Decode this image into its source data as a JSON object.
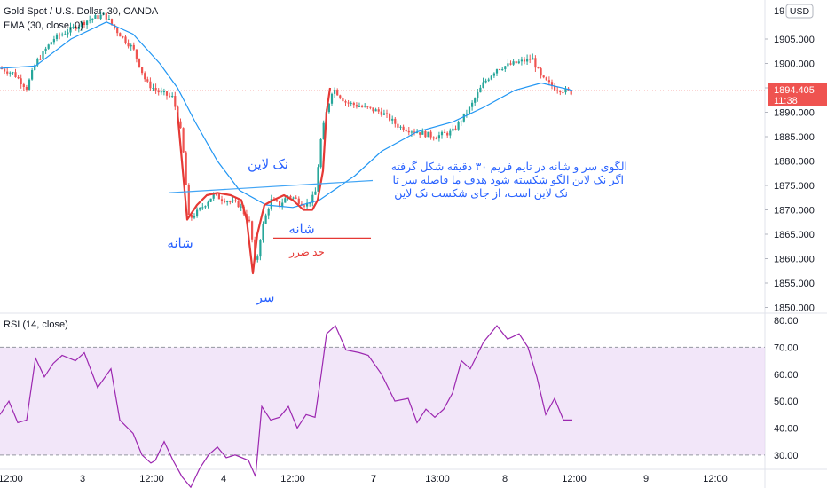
{
  "header": {
    "symbol_title": "Gold Spot / U.S. Dollar, 30, OANDA",
    "ema_label": "EMA (30, close, 0)",
    "currency_button": "USD",
    "last_price": "1894.405",
    "countdown": "11:38"
  },
  "rsi_panel": {
    "label": "RSI (14, close)"
  },
  "annotations": {
    "neckline_label": "نک لاین",
    "left_shoulder": "شانه",
    "right_shoulder": "شانه",
    "head": "سر",
    "stop_loss": "حد ضرر",
    "note_line1": "الگوی سر و شانه در تایم فریم ۳۰ دقیقه شکل گرفته",
    "note_line2": "اگر نک لاین الگو شکسته شود هدف ما فاصله سر تا",
    "note_line3": "نک لاین است، از جای شکست نک لاین"
  },
  "colors": {
    "candle_up": "#26a69a",
    "candle_down": "#ef5350",
    "ema": "#2196f3",
    "rsi_line": "#9c27b0",
    "rsi_band": "#e9d5f5",
    "price_line": "#ef5350",
    "pattern_line": "#e53935",
    "neckline": "#42a5f5"
  },
  "chart_data": [
    {
      "type": "candlestick",
      "title": "Gold Spot / U.S. Dollar, 30, OANDA",
      "y_unit": "USD",
      "ylim": [
        1849,
        1913
      ],
      "y_ticks": [
        1850.0,
        1855.0,
        1860.0,
        1865.0,
        1870.0,
        1875.0,
        1880.0,
        1885.0,
        1890.0,
        1895.0,
        1900.0,
        1905.0
      ],
      "y_tick_labels": [
        "1850.000",
        "1855.000",
        "1860.000",
        "1865.000",
        "1870.000",
        "1875.000",
        "1880.000",
        "1885.000",
        "1890.000",
        "1895.000",
        "1900.000",
        "1905.000"
      ],
      "x_tick_labels": [
        "12:00",
        "3",
        "12:00",
        "4",
        "12:00",
        "7",
        "13:00",
        "8",
        "12:00",
        "9",
        "12:00"
      ],
      "last_price": 1894.405,
      "series": [
        {
          "name": "EMA (30, close, 0)",
          "kind": "ema",
          "points": [
            [
              0,
              1899.0
            ],
            [
              40,
              1899.5
            ],
            [
              80,
              1905.0
            ],
            [
              120,
              1908.5
            ],
            [
              150,
              1906.0
            ],
            [
              180,
              1900.0
            ],
            [
              200,
              1895.0
            ],
            [
              220,
              1888.0
            ],
            [
              245,
              1880.0
            ],
            [
              270,
              1874.0
            ],
            [
              300,
              1871.0
            ],
            [
              330,
              1870.5
            ],
            [
              360,
              1872.0
            ],
            [
              400,
              1877.0
            ],
            [
              430,
              1882.0
            ],
            [
              470,
              1886.0
            ],
            [
              510,
              1888.0
            ],
            [
              545,
              1891.0
            ],
            [
              580,
              1894.5
            ],
            [
              610,
              1896.0
            ],
            [
              645,
              1894.5
            ]
          ]
        },
        {
          "name": "Price",
          "kind": "price_path",
          "points": [
            [
              0,
              1899
            ],
            [
              15,
              1898
            ],
            [
              30,
              1895
            ],
            [
              40,
              1900
            ],
            [
              60,
              1905
            ],
            [
              80,
              1907
            ],
            [
              100,
              1909
            ],
            [
              118,
              1910
            ],
            [
              130,
              1907
            ],
            [
              150,
              1903
            ],
            [
              165,
              1896
            ],
            [
              180,
              1894
            ],
            [
              195,
              1893
            ],
            [
              205,
              1885
            ],
            [
              213,
              1868
            ],
            [
              225,
              1870
            ],
            [
              240,
              1873
            ],
            [
              255,
              1872
            ],
            [
              270,
              1871
            ],
            [
              282,
              1867
            ],
            [
              288,
              1858
            ],
            [
              295,
              1866
            ],
            [
              305,
              1872
            ],
            [
              315,
              1871
            ],
            [
              325,
              1873
            ],
            [
              335,
              1872
            ],
            [
              345,
              1871
            ],
            [
              355,
              1873
            ],
            [
              362,
              1885
            ],
            [
              368,
              1890
            ],
            [
              375,
              1895
            ],
            [
              390,
              1892
            ],
            [
              410,
              1891
            ],
            [
              430,
              1890
            ],
            [
              450,
              1887
            ],
            [
              470,
              1886
            ],
            [
              490,
              1885
            ],
            [
              510,
              1886
            ],
            [
              530,
              1891
            ],
            [
              545,
              1896
            ],
            [
              560,
              1899
            ],
            [
              580,
              1900
            ],
            [
              600,
              1901
            ],
            [
              610,
              1897
            ],
            [
              625,
              1895
            ],
            [
              645,
              1894
            ]
          ]
        }
      ],
      "pattern": {
        "name": "head and shoulders",
        "path": [
          [
            200,
            1890
          ],
          [
            206,
            1878
          ],
          [
            211,
            1868
          ],
          [
            222,
            1871
          ],
          [
            233,
            1873
          ],
          [
            245,
            1873.5
          ],
          [
            260,
            1873
          ],
          [
            272,
            1872
          ],
          [
            278,
            1868
          ],
          [
            285,
            1857
          ],
          [
            290,
            1865
          ],
          [
            298,
            1871
          ],
          [
            308,
            1872
          ],
          [
            320,
            1873
          ],
          [
            330,
            1872
          ],
          [
            342,
            1870
          ],
          [
            352,
            1870
          ],
          [
            358,
            1872
          ],
          [
            364,
            1878
          ],
          [
            368,
            1890
          ],
          [
            372,
            1895
          ]
        ],
        "neckline": [
          [
            190,
            1873.5
          ],
          [
            420,
            1876
          ]
        ],
        "stop_loss": {
          "x0": 308,
          "x1": 418,
          "y": 1864.2
        }
      }
    },
    {
      "type": "line",
      "title": "RSI (14, close)",
      "ylim": [
        25,
        82
      ],
      "y_ticks": [
        30,
        40,
        50,
        60,
        70,
        80
      ],
      "y_tick_labels": [
        "30.00",
        "40.00",
        "50.00",
        "60.00",
        "70.00",
        "80.00"
      ],
      "band": [
        30,
        70
      ],
      "series": [
        {
          "name": "RSI (14, close)",
          "points": [
            [
              0,
              45
            ],
            [
              10,
              50
            ],
            [
              20,
              42
            ],
            [
              30,
              43
            ],
            [
              40,
              66
            ],
            [
              50,
              59
            ],
            [
              60,
              64
            ],
            [
              70,
              67
            ],
            [
              85,
              65
            ],
            [
              95,
              68
            ],
            [
              110,
              55
            ],
            [
              125,
              62
            ],
            [
              135,
              43
            ],
            [
              150,
              38
            ],
            [
              160,
              30
            ],
            [
              170,
              27
            ],
            [
              175,
              28
            ],
            [
              185,
              35
            ],
            [
              195,
              28
            ],
            [
              205,
              22
            ],
            [
              215,
              18
            ],
            [
              225,
              25
            ],
            [
              235,
              30
            ],
            [
              245,
              33
            ],
            [
              255,
              29
            ],
            [
              265,
              30
            ],
            [
              280,
              28
            ],
            [
              288,
              22
            ],
            [
              295,
              48
            ],
            [
              305,
              43
            ],
            [
              315,
              44
            ],
            [
              325,
              48
            ],
            [
              335,
              40
            ],
            [
              345,
              45
            ],
            [
              355,
              44
            ],
            [
              362,
              60
            ],
            [
              368,
              75
            ],
            [
              378,
              78
            ],
            [
              390,
              69
            ],
            [
              405,
              68
            ],
            [
              415,
              67
            ],
            [
              430,
              60
            ],
            [
              445,
              50
            ],
            [
              460,
              51
            ],
            [
              470,
              42
            ],
            [
              480,
              47
            ],
            [
              490,
              44
            ],
            [
              500,
              47
            ],
            [
              510,
              53
            ],
            [
              520,
              65
            ],
            [
              530,
              62
            ],
            [
              545,
              72
            ],
            [
              560,
              78
            ],
            [
              572,
              73
            ],
            [
              585,
              75
            ],
            [
              595,
              70
            ],
            [
              605,
              59
            ],
            [
              615,
              45
            ],
            [
              625,
              51
            ],
            [
              635,
              43
            ],
            [
              645,
              43
            ]
          ]
        }
      ]
    }
  ]
}
